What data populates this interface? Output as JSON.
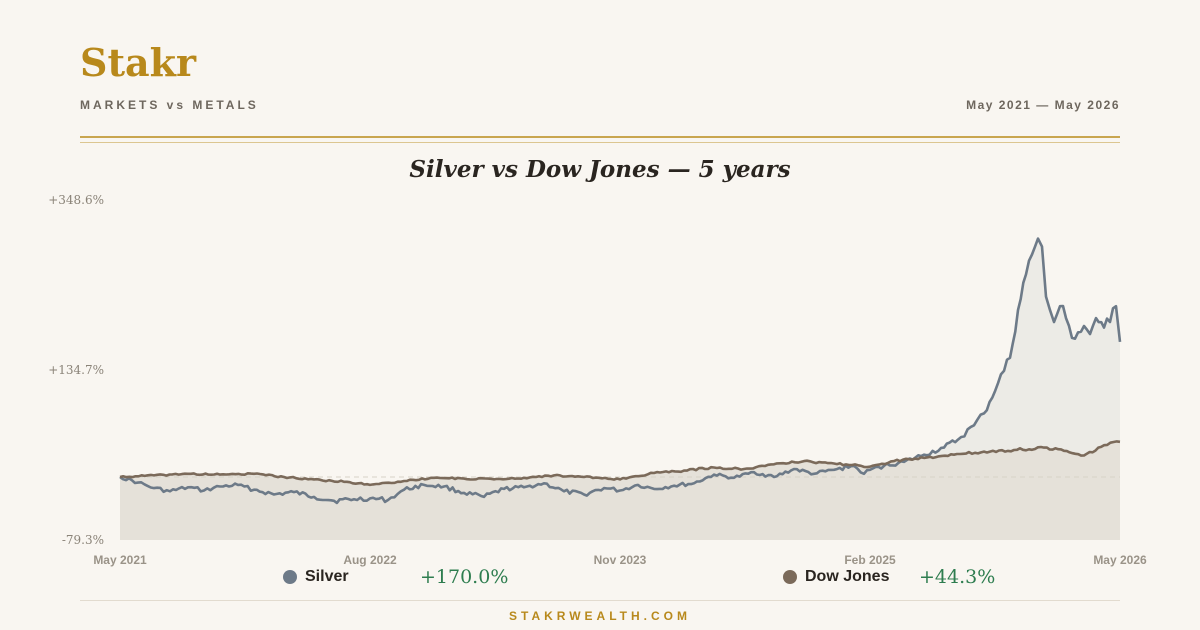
{
  "header": {
    "brand": "Stakr",
    "tagline": "MARKETS vs METALS",
    "date_range": "May 2021 — May 2026"
  },
  "footer": {
    "site": "STAKRWEALTH.COM"
  },
  "colors": {
    "brand": "#b8891c",
    "silver": "#6d7a88",
    "dow_jones": "#7b6a5a",
    "positive": "#2e7d4f"
  },
  "legend": [
    {
      "name": "Silver",
      "change": "+170.0%",
      "color": "#6d7a88"
    },
    {
      "name": "Dow Jones",
      "change": "+44.3%",
      "color": "#7b6a5a"
    }
  ],
  "chart_data": {
    "type": "line",
    "title": "Silver vs Dow Jones — 5 years",
    "xlabel": "",
    "ylabel": "",
    "ylim": [
      -79.3,
      348.6
    ],
    "y_ticks": [
      "+348.6%",
      "+134.7%",
      "-79.3%"
    ],
    "y_tick_values": [
      348.6,
      134.7,
      -79.3
    ],
    "x_ticks": [
      "May 2021",
      "Aug 2022",
      "Nov 2023",
      "Feb 2025",
      "May 2026"
    ],
    "x_tick_values": [
      2021.33,
      2022.58,
      2023.83,
      2025.08,
      2026.33
    ],
    "x_range": [
      2021.33,
      2026.33
    ],
    "baseline": 0,
    "grid": false,
    "area_fill": true,
    "series": [
      {
        "name": "Silver",
        "color": "#6d7a88",
        "x": [
          2021.33,
          2021.42,
          2021.5,
          2021.58,
          2021.67,
          2021.75,
          2021.83,
          2021.92,
          2022.0,
          2022.1,
          2022.2,
          2022.3,
          2022.4,
          2022.5,
          2022.58,
          2022.67,
          2022.75,
          2022.85,
          2022.95,
          2023.05,
          2023.15,
          2023.25,
          2023.35,
          2023.45,
          2023.55,
          2023.65,
          2023.75,
          2023.83,
          2023.92,
          2024.0,
          2024.1,
          2024.2,
          2024.3,
          2024.4,
          2024.5,
          2024.6,
          2024.7,
          2024.8,
          2024.9,
          2025.0,
          2025.05,
          2025.08,
          2025.15,
          2025.25,
          2025.35,
          2025.45,
          2025.52,
          2025.6,
          2025.65,
          2025.72,
          2025.78,
          2025.82,
          2025.86,
          2025.89,
          2025.92,
          2025.94,
          2025.96,
          2025.98,
          2026.0,
          2026.03,
          2026.06,
          2026.09,
          2026.12,
          2026.15,
          2026.18,
          2026.21,
          2026.25,
          2026.28,
          2026.31,
          2026.33
        ],
        "values": [
          0,
          -7,
          -14,
          -18,
          -13,
          -17,
          -12,
          -10,
          -16,
          -22,
          -19,
          -25,
          -30,
          -28,
          -27,
          -29,
          -16,
          -10,
          -12,
          -20,
          -25,
          -15,
          -13,
          -8,
          -18,
          -22,
          -14,
          -17,
          -10,
          -15,
          -11,
          -8,
          3,
          -1,
          6,
          0,
          10,
          4,
          9,
          14,
          4,
          9,
          14,
          19,
          28,
          37,
          47,
          65,
          80,
          118,
          150,
          210,
          255,
          280,
          300,
          290,
          227,
          210,
          195,
          215,
          200,
          175,
          182,
          190,
          180,
          200,
          188,
          195,
          215,
          170
        ]
      },
      {
        "name": "Dow Jones",
        "color": "#7b6a5a",
        "x": [
          2021.33,
          2021.5,
          2021.67,
          2021.83,
          2022.0,
          2022.15,
          2022.3,
          2022.45,
          2022.58,
          2022.75,
          2022.9,
          2023.05,
          2023.2,
          2023.35,
          2023.5,
          2023.65,
          2023.83,
          2024.0,
          2024.15,
          2024.3,
          2024.45,
          2024.6,
          2024.75,
          2024.9,
          2025.08,
          2025.2,
          2025.35,
          2025.5,
          2025.65,
          2025.8,
          2025.95,
          2026.05,
          2026.15,
          2026.25,
          2026.33
        ],
        "values": [
          0,
          2,
          4,
          3,
          4,
          0,
          -3,
          -6,
          -10,
          -5,
          -1,
          -2,
          -3,
          -1,
          2,
          0,
          -3,
          5,
          8,
          12,
          10,
          16,
          20,
          17,
          13,
          20,
          24,
          28,
          32,
          34,
          37,
          33,
          27,
          40,
          44.3
        ]
      }
    ]
  }
}
